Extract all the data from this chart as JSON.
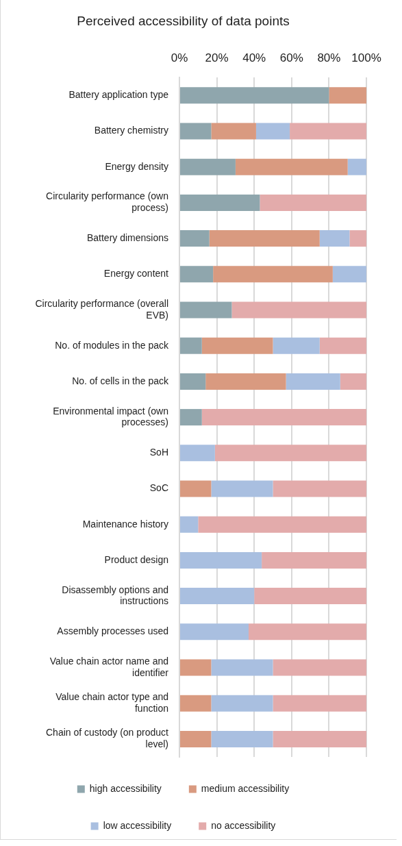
{
  "chart_data": {
    "type": "bar",
    "title": "Perceived accessibility of data points",
    "orientation": "horizontal",
    "stacked": true,
    "categories": [
      "Battery application type",
      "Battery chemistry",
      "Energy density",
      "Circularity performance (own process)",
      "Battery dimensions",
      "Energy content",
      "Circularity performance (overall EVB)",
      "No. of modules in the pack",
      "No. of cells in the pack",
      "Environmental impact (own processes)",
      "SoH",
      "SoC",
      "Maintenance history",
      "Product design",
      "Disassembly options and instructions",
      "Assembly processes used",
      "Value chain actor name and identifier",
      "Value chain actor type and function",
      "Chain of custody (on product level)"
    ],
    "series": [
      {
        "name": "high accessibility",
        "color": "#8fa6ad",
        "values": [
          80,
          17,
          30,
          43,
          16,
          18,
          28,
          12,
          14,
          12,
          0,
          0,
          0,
          0,
          0,
          0,
          0,
          0,
          0
        ]
      },
      {
        "name": "medium accessibility",
        "color": "#d99a80",
        "values": [
          20,
          24,
          60,
          0,
          59,
          64,
          0,
          38,
          43,
          0,
          0,
          17,
          0,
          0,
          0,
          0,
          17,
          17,
          17
        ]
      },
      {
        "name": "low accessibility",
        "color": "#a9bfe0",
        "values": [
          0,
          18,
          10,
          0,
          16,
          18,
          0,
          25,
          29,
          0,
          19,
          33,
          10,
          44,
          40,
          37,
          33,
          33,
          33
        ]
      },
      {
        "name": "no accessibility",
        "color": "#e3abab",
        "values": [
          0,
          41,
          0,
          57,
          9,
          0,
          72,
          25,
          14,
          88,
          81,
          50,
          90,
          56,
          60,
          63,
          50,
          50,
          50
        ]
      }
    ],
    "xlim": [
      0,
      100
    ],
    "xticks": [
      {
        "value": 0,
        "label": "0%"
      },
      {
        "value": 20,
        "label": "20%"
      },
      {
        "value": 40,
        "label": "40%"
      },
      {
        "value": 60,
        "label": "60%"
      },
      {
        "value": 80,
        "label": "80%"
      },
      {
        "value": 100,
        "label": "100%"
      }
    ],
    "grid": "x",
    "legend": "bottom"
  }
}
